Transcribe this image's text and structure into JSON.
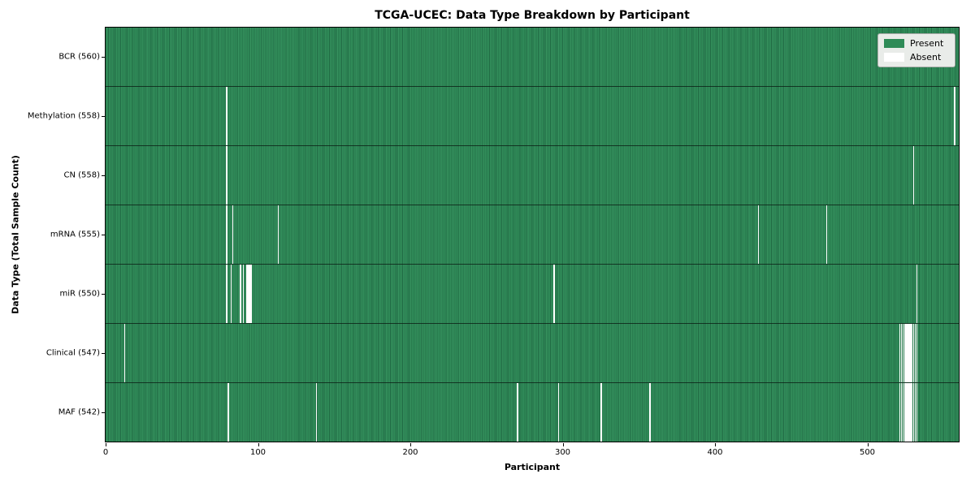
{
  "chart_data": {
    "type": "heatmap",
    "title": "TCGA-UCEC: Data Type Breakdown by Participant",
    "xlabel": "Participant",
    "ylabel": "Data Type (Total Sample Count)",
    "x_ticks": [
      0,
      100,
      200,
      300,
      400,
      500
    ],
    "x_range": [
      0,
      560
    ],
    "n_participants": 560,
    "grid": false,
    "legend_position": "upper-right",
    "legend": [
      {
        "label": "Present",
        "color": "#2e8b57"
      },
      {
        "label": "Absent",
        "color": "#ffffff"
      }
    ],
    "colors": {
      "present": "#2e8b57",
      "present_stripe_dark": "#206943",
      "absent": "#ffffff",
      "row_separator": "#1a2e22",
      "legend_bg": "#e9ece9"
    },
    "rows": [
      {
        "label": "BCR (560)",
        "total": 560,
        "absent_participants": []
      },
      {
        "label": "Methylation (558)",
        "total": 558,
        "absent_participants": [
          79,
          557
        ]
      },
      {
        "label": "CN (558)",
        "total": 558,
        "absent_participants": [
          79,
          530
        ]
      },
      {
        "label": "mRNA (555)",
        "total": 555,
        "absent_participants": [
          79,
          83,
          113,
          428,
          473
        ]
      },
      {
        "label": "miR (550)",
        "total": 550,
        "absent_participants": [
          79,
          82,
          88,
          90,
          92,
          93,
          94,
          95,
          294,
          532
        ]
      },
      {
        "label": "Clinical (547)",
        "total": 547,
        "absent_participants": [
          12,
          521,
          522,
          523,
          524,
          525,
          526,
          527,
          528,
          529,
          530,
          531,
          532
        ]
      },
      {
        "label": "MAF (542)",
        "total": 542,
        "absent_participants": [
          80,
          138,
          270,
          297,
          325,
          357,
          521,
          522,
          523,
          524,
          525,
          526,
          527,
          528,
          529,
          530,
          531,
          532
        ]
      }
    ]
  }
}
